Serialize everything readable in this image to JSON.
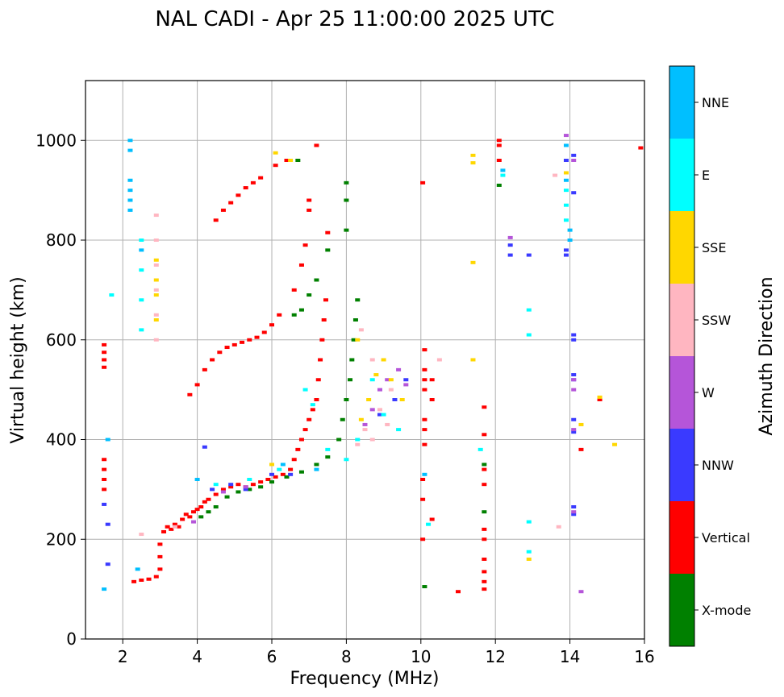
{
  "chart_data": {
    "type": "scatter",
    "title": "NAL CADI - Apr 25 11:00:00 2025 UTC",
    "xlabel": "Frequency (MHz)",
    "ylabel": "Virtual height (km)",
    "xlim": [
      1,
      16
    ],
    "ylim": [
      0,
      1120
    ],
    "xticks": [
      2,
      4,
      6,
      8,
      10,
      12,
      14,
      16
    ],
    "yticks": [
      0,
      200,
      400,
      600,
      800,
      1000
    ],
    "grid": true,
    "colorbar": {
      "label": "Azimuth Direction",
      "position": "right",
      "categories": [
        {
          "name": "X-mode",
          "color": "#008000"
        },
        {
          "name": "Vertical",
          "color": "#ff0000"
        },
        {
          "name": "NNW",
          "color": "#3a3aff"
        },
        {
          "name": "W",
          "color": "#b555d9"
        },
        {
          "name": "SSW",
          "color": "#ffb6c1"
        },
        {
          "name": "SSE",
          "color": "#ffd700"
        },
        {
          "name": "E",
          "color": "#00ffff"
        },
        {
          "name": "NNE",
          "color": "#00bfff"
        }
      ]
    },
    "series": [
      {
        "name": "Vertical",
        "color": "#ff0000",
        "points": [
          [
            1.5,
            300
          ],
          [
            1.5,
            320
          ],
          [
            1.5,
            340
          ],
          [
            1.5,
            360
          ],
          [
            1.5,
            545
          ],
          [
            1.5,
            560
          ],
          [
            1.5,
            575
          ],
          [
            1.5,
            590
          ],
          [
            2.3,
            115
          ],
          [
            2.5,
            118
          ],
          [
            2.7,
            120
          ],
          [
            2.9,
            125
          ],
          [
            3.0,
            140
          ],
          [
            3.0,
            165
          ],
          [
            3.0,
            190
          ],
          [
            3.1,
            215
          ],
          [
            3.2,
            225
          ],
          [
            3.3,
            220
          ],
          [
            3.4,
            230
          ],
          [
            3.5,
            225
          ],
          [
            3.6,
            240
          ],
          [
            3.7,
            250
          ],
          [
            3.8,
            245
          ],
          [
            3.9,
            255
          ],
          [
            4.0,
            260
          ],
          [
            4.1,
            265
          ],
          [
            4.2,
            275
          ],
          [
            4.3,
            280
          ],
          [
            4.5,
            290
          ],
          [
            4.7,
            300
          ],
          [
            4.9,
            305
          ],
          [
            5.1,
            310
          ],
          [
            5.3,
            305
          ],
          [
            5.5,
            310
          ],
          [
            5.7,
            315
          ],
          [
            5.9,
            320
          ],
          [
            6.1,
            325
          ],
          [
            6.3,
            330
          ],
          [
            6.5,
            340
          ],
          [
            6.6,
            360
          ],
          [
            6.7,
            380
          ],
          [
            6.8,
            400
          ],
          [
            6.9,
            420
          ],
          [
            7.0,
            440
          ],
          [
            7.1,
            460
          ],
          [
            7.2,
            480
          ],
          [
            7.25,
            520
          ],
          [
            7.3,
            560
          ],
          [
            7.35,
            600
          ],
          [
            7.4,
            640
          ],
          [
            7.45,
            680
          ],
          [
            3.8,
            490
          ],
          [
            4.0,
            510
          ],
          [
            4.2,
            540
          ],
          [
            4.4,
            560
          ],
          [
            4.6,
            575
          ],
          [
            4.8,
            585
          ],
          [
            5.0,
            590
          ],
          [
            5.2,
            595
          ],
          [
            5.4,
            600
          ],
          [
            5.6,
            605
          ],
          [
            5.8,
            615
          ],
          [
            6.0,
            630
          ],
          [
            6.2,
            650
          ],
          [
            6.6,
            700
          ],
          [
            6.8,
            750
          ],
          [
            6.9,
            790
          ],
          [
            4.5,
            840
          ],
          [
            4.7,
            860
          ],
          [
            4.9,
            875
          ],
          [
            5.1,
            890
          ],
          [
            5.3,
            905
          ],
          [
            5.5,
            915
          ],
          [
            5.7,
            925
          ],
          [
            6.1,
            950
          ],
          [
            6.4,
            960
          ],
          [
            7.0,
            860
          ],
          [
            7.0,
            880
          ],
          [
            7.2,
            990
          ],
          [
            7.5,
            815
          ],
          [
            10.05,
            200
          ],
          [
            10.05,
            280
          ],
          [
            10.05,
            320
          ],
          [
            10.1,
            390
          ],
          [
            10.1,
            420
          ],
          [
            10.1,
            440
          ],
          [
            10.1,
            500
          ],
          [
            10.1,
            520
          ],
          [
            10.1,
            540
          ],
          [
            10.1,
            580
          ],
          [
            10.3,
            240
          ],
          [
            10.3,
            480
          ],
          [
            10.3,
            520
          ],
          [
            10.05,
            915
          ],
          [
            11.0,
            95
          ],
          [
            11.7,
            100
          ],
          [
            11.7,
            115
          ],
          [
            11.7,
            135
          ],
          [
            11.7,
            160
          ],
          [
            11.7,
            200
          ],
          [
            11.7,
            220
          ],
          [
            11.7,
            310
          ],
          [
            11.7,
            340
          ],
          [
            11.7,
            410
          ],
          [
            11.7,
            465
          ],
          [
            12.1,
            960
          ],
          [
            12.1,
            990
          ],
          [
            12.1,
            1000
          ],
          [
            14.3,
            380
          ],
          [
            14.8,
            480
          ],
          [
            15.9,
            985
          ]
        ]
      },
      {
        "name": "X-mode",
        "color": "#008000",
        "points": [
          [
            4.1,
            245
          ],
          [
            4.3,
            255
          ],
          [
            4.5,
            265
          ],
          [
            4.8,
            285
          ],
          [
            5.1,
            295
          ],
          [
            5.4,
            300
          ],
          [
            5.7,
            305
          ],
          [
            6.0,
            315
          ],
          [
            6.4,
            325
          ],
          [
            6.8,
            335
          ],
          [
            7.2,
            350
          ],
          [
            7.5,
            365
          ],
          [
            7.8,
            400
          ],
          [
            7.9,
            440
          ],
          [
            8.0,
            480
          ],
          [
            8.1,
            520
          ],
          [
            8.15,
            560
          ],
          [
            8.2,
            600
          ],
          [
            8.25,
            640
          ],
          [
            8.3,
            680
          ],
          [
            6.6,
            650
          ],
          [
            6.8,
            660
          ],
          [
            7.0,
            690
          ],
          [
            7.2,
            720
          ],
          [
            7.5,
            780
          ],
          [
            8.0,
            820
          ],
          [
            8.0,
            880
          ],
          [
            8.0,
            915
          ],
          [
            6.7,
            960
          ],
          [
            10.1,
            105
          ],
          [
            11.7,
            255
          ],
          [
            11.7,
            350
          ],
          [
            12.1,
            910
          ]
        ]
      },
      {
        "name": "NNW",
        "color": "#3a3aff",
        "points": [
          [
            1.5,
            270
          ],
          [
            1.6,
            230
          ],
          [
            1.6,
            150
          ],
          [
            4.2,
            385
          ],
          [
            4.4,
            300
          ],
          [
            4.9,
            310
          ],
          [
            5.3,
            300
          ],
          [
            6.0,
            330
          ],
          [
            6.5,
            330
          ],
          [
            8.9,
            450
          ],
          [
            9.3,
            480
          ],
          [
            9.6,
            520
          ],
          [
            12.4,
            790
          ],
          [
            12.4,
            770
          ],
          [
            12.9,
            770
          ],
          [
            13.9,
            770
          ],
          [
            13.9,
            780
          ],
          [
            13.9,
            960
          ],
          [
            14.1,
            250
          ],
          [
            14.1,
            265
          ],
          [
            14.1,
            415
          ],
          [
            14.1,
            440
          ],
          [
            14.1,
            520
          ],
          [
            14.1,
            530
          ],
          [
            14.1,
            600
          ],
          [
            14.1,
            610
          ],
          [
            14.1,
            895
          ],
          [
            14.1,
            970
          ]
        ]
      },
      {
        "name": "W",
        "color": "#b555d9",
        "points": [
          [
            3.9,
            235
          ],
          [
            4.7,
            295
          ],
          [
            5.3,
            305
          ],
          [
            8.5,
            430
          ],
          [
            8.7,
            460
          ],
          [
            8.9,
            500
          ],
          [
            9.1,
            520
          ],
          [
            9.4,
            540
          ],
          [
            9.6,
            510
          ],
          [
            12.4,
            805
          ],
          [
            14.1,
            255
          ],
          [
            14.1,
            500
          ],
          [
            14.1,
            520
          ],
          [
            14.1,
            420
          ],
          [
            14.1,
            960
          ],
          [
            14.3,
            95
          ],
          [
            13.9,
            1010
          ]
        ]
      },
      {
        "name": "SSW",
        "color": "#ffb6c1",
        "points": [
          [
            2.9,
            600
          ],
          [
            2.9,
            650
          ],
          [
            2.9,
            700
          ],
          [
            2.9,
            750
          ],
          [
            2.9,
            800
          ],
          [
            2.9,
            850
          ],
          [
            2.5,
            210
          ],
          [
            3.4,
            225
          ],
          [
            8.3,
            390
          ],
          [
            8.5,
            420
          ],
          [
            8.7,
            400
          ],
          [
            8.9,
            460
          ],
          [
            9.1,
            430
          ],
          [
            9.2,
            500
          ],
          [
            8.7,
            560
          ],
          [
            8.4,
            620
          ],
          [
            13.6,
            930
          ],
          [
            13.7,
            225
          ],
          [
            10.5,
            560
          ]
        ]
      },
      {
        "name": "SSE",
        "color": "#ffd700",
        "points": [
          [
            2.9,
            640
          ],
          [
            2.9,
            690
          ],
          [
            2.9,
            720
          ],
          [
            2.9,
            760
          ],
          [
            6.0,
            350
          ],
          [
            6.1,
            975
          ],
          [
            6.5,
            960
          ],
          [
            8.4,
            440
          ],
          [
            8.6,
            480
          ],
          [
            8.8,
            530
          ],
          [
            9.0,
            560
          ],
          [
            9.2,
            520
          ],
          [
            9.5,
            480
          ],
          [
            8.3,
            600
          ],
          [
            11.4,
            560
          ],
          [
            11.4,
            755
          ],
          [
            11.4,
            955
          ],
          [
            11.4,
            970
          ],
          [
            12.9,
            160
          ],
          [
            14.3,
            430
          ],
          [
            14.8,
            485
          ],
          [
            15.2,
            390
          ],
          [
            13.9,
            935
          ]
        ]
      },
      {
        "name": "E",
        "color": "#00ffff",
        "points": [
          [
            1.7,
            690
          ],
          [
            2.5,
            620
          ],
          [
            2.5,
            680
          ],
          [
            2.5,
            740
          ],
          [
            2.5,
            800
          ],
          [
            4.5,
            310
          ],
          [
            5.4,
            320
          ],
          [
            6.2,
            340
          ],
          [
            6.9,
            500
          ],
          [
            7.1,
            470
          ],
          [
            7.5,
            380
          ],
          [
            8.0,
            360
          ],
          [
            8.3,
            400
          ],
          [
            8.7,
            520
          ],
          [
            9.0,
            450
          ],
          [
            9.4,
            420
          ],
          [
            12.9,
            610
          ],
          [
            12.9,
            660
          ],
          [
            12.9,
            235
          ],
          [
            12.9,
            175
          ],
          [
            12.2,
            930
          ],
          [
            13.9,
            840
          ],
          [
            13.9,
            870
          ],
          [
            13.9,
            900
          ],
          [
            11.6,
            380
          ],
          [
            10.2,
            230
          ]
        ]
      },
      {
        "name": "NNE",
        "color": "#00bfff",
        "points": [
          [
            1.5,
            100
          ],
          [
            1.6,
            400
          ],
          [
            2.2,
            860
          ],
          [
            2.2,
            880
          ],
          [
            2.2,
            900
          ],
          [
            2.2,
            920
          ],
          [
            2.2,
            980
          ],
          [
            2.2,
            1000
          ],
          [
            2.4,
            140
          ],
          [
            2.5,
            780
          ],
          [
            4.0,
            320
          ],
          [
            6.3,
            350
          ],
          [
            7.2,
            340
          ],
          [
            10.1,
            330
          ],
          [
            14.0,
            800
          ],
          [
            14.0,
            820
          ],
          [
            12.2,
            940
          ],
          [
            13.9,
            990
          ],
          [
            13.9,
            920
          ]
        ]
      }
    ]
  }
}
